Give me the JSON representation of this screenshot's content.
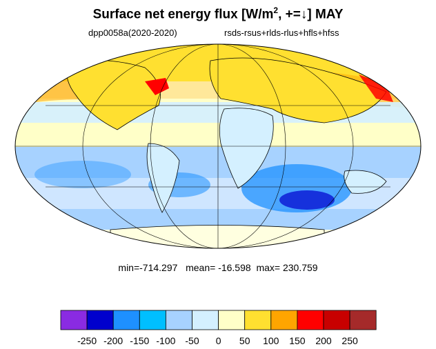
{
  "title": {
    "main": "Surface net energy flux [W/m",
    "sup": "2",
    "rest": ", +=↓] MAY"
  },
  "subtitle_left": "dpp0058a(2020-2020)",
  "subtitle_right": "rsds-rsus+rlds-rlus+hfls+hfss",
  "stats": {
    "min": "min=-714.297",
    "mean": "mean= -16.598",
    "max": "max= 230.759"
  },
  "colorbar": {
    "colors": [
      "#8a2be2",
      "#0000cd",
      "#1e90ff",
      "#00bfff",
      "#a7d2ff",
      "#d4f0ff",
      "#ffffc8",
      "#ffe030",
      "#ffa500",
      "#ff0000",
      "#c80000",
      "#a52a2a"
    ],
    "tick_labels": [
      "-250",
      "-200",
      "-150",
      "-100",
      "-50",
      "0",
      "50",
      "100",
      "150",
      "200",
      "250"
    ],
    "levels": [
      -250,
      -200,
      -150,
      -100,
      -50,
      0,
      50,
      100,
      150,
      200,
      250
    ]
  }
}
